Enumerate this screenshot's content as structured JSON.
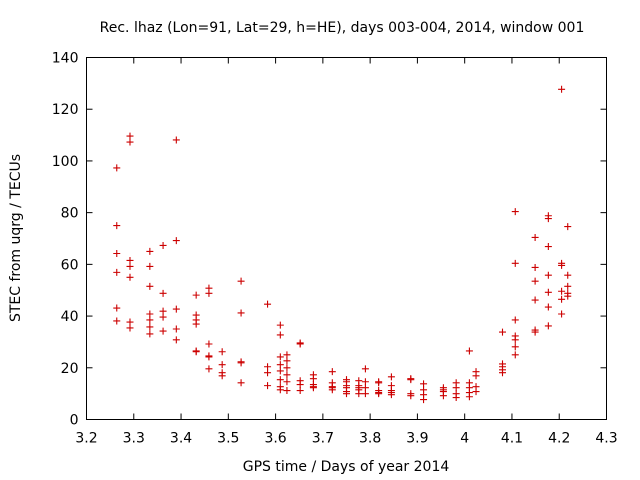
{
  "chart_data": {
    "type": "scatter",
    "title": "Rec. lhaz (Lon=91, Lat=29, h=HE), days 003-004, 2014, window 001",
    "xlabel": "GPS time / Days of year 2014",
    "ylabel": "STEC from uqrg / TECUs",
    "xlim": [
      3.2,
      4.3
    ],
    "ylim": [
      0,
      140
    ],
    "xticks": [
      "3.2",
      "3.3",
      "3.4",
      "3.5",
      "3.6",
      "3.7",
      "3.8",
      "3.9",
      "4",
      "4.1",
      "4.2",
      "4.3"
    ],
    "yticks": [
      "0",
      "20",
      "40",
      "60",
      "80",
      "100",
      "120",
      "140"
    ],
    "marker": "+",
    "color": "#cc0000",
    "points": [
      [
        3.264,
        97.3
      ],
      [
        3.264,
        75.0
      ],
      [
        3.264,
        64.2
      ],
      [
        3.264,
        56.9
      ],
      [
        3.264,
        43.1
      ],
      [
        3.264,
        38.1
      ],
      [
        3.292,
        109.6
      ],
      [
        3.292,
        107.3
      ],
      [
        3.292,
        61.5
      ],
      [
        3.292,
        59.2
      ],
      [
        3.292,
        55.0
      ],
      [
        3.292,
        37.7
      ],
      [
        3.292,
        35.4
      ],
      [
        3.334,
        65.0
      ],
      [
        3.334,
        59.2
      ],
      [
        3.334,
        51.5
      ],
      [
        3.334,
        40.8
      ],
      [
        3.334,
        38.5
      ],
      [
        3.334,
        35.8
      ],
      [
        3.334,
        33.1
      ],
      [
        3.362,
        67.3
      ],
      [
        3.362,
        48.8
      ],
      [
        3.362,
        41.9
      ],
      [
        3.362,
        39.6
      ],
      [
        3.362,
        34.2
      ],
      [
        3.39,
        108.1
      ],
      [
        3.39,
        69.2
      ],
      [
        3.39,
        42.7
      ],
      [
        3.39,
        35.0
      ],
      [
        3.39,
        30.8
      ],
      [
        3.432,
        48.1
      ],
      [
        3.432,
        40.4
      ],
      [
        3.432,
        38.5
      ],
      [
        3.432,
        36.9
      ],
      [
        3.432,
        26.5
      ],
      [
        3.432,
        26.2
      ],
      [
        3.459,
        50.8
      ],
      [
        3.459,
        48.8
      ],
      [
        3.459,
        29.2
      ],
      [
        3.459,
        24.6
      ],
      [
        3.459,
        24.2
      ],
      [
        3.459,
        19.6
      ],
      [
        3.487,
        26.2
      ],
      [
        3.487,
        21.2
      ],
      [
        3.487,
        18.1
      ],
      [
        3.487,
        16.9
      ],
      [
        3.527,
        53.5
      ],
      [
        3.527,
        41.2
      ],
      [
        3.527,
        22.3
      ],
      [
        3.527,
        21.9
      ],
      [
        3.527,
        14.2
      ],
      [
        3.583,
        44.6
      ],
      [
        3.583,
        20.4
      ],
      [
        3.583,
        18.1
      ],
      [
        3.583,
        13.1
      ],
      [
        3.61,
        36.5
      ],
      [
        3.61,
        32.7
      ],
      [
        3.61,
        24.2
      ],
      [
        3.61,
        21.2
      ],
      [
        3.61,
        18.8
      ],
      [
        3.61,
        15.4
      ],
      [
        3.61,
        12.7
      ],
      [
        3.61,
        11.5
      ],
      [
        3.624,
        25.0
      ],
      [
        3.624,
        22.7
      ],
      [
        3.624,
        20.0
      ],
      [
        3.624,
        17.3
      ],
      [
        3.624,
        14.6
      ],
      [
        3.624,
        11.2
      ],
      [
        3.652,
        29.6
      ],
      [
        3.652,
        29.2
      ],
      [
        3.652,
        15.0
      ],
      [
        3.652,
        13.5
      ],
      [
        3.652,
        11.2
      ],
      [
        3.68,
        17.3
      ],
      [
        3.68,
        15.8
      ],
      [
        3.68,
        13.5
      ],
      [
        3.68,
        12.7
      ],
      [
        3.68,
        12.3
      ],
      [
        3.72,
        18.5
      ],
      [
        3.72,
        14.2
      ],
      [
        3.72,
        12.7
      ],
      [
        3.72,
        12.3
      ],
      [
        3.72,
        11.5
      ],
      [
        3.75,
        15.4
      ],
      [
        3.75,
        14.6
      ],
      [
        3.75,
        13.1
      ],
      [
        3.75,
        12.3
      ],
      [
        3.75,
        10.8
      ],
      [
        3.75,
        10.0
      ],
      [
        3.776,
        15.0
      ],
      [
        3.776,
        13.1
      ],
      [
        3.776,
        12.3
      ],
      [
        3.776,
        11.5
      ],
      [
        3.776,
        10.0
      ],
      [
        3.79,
        19.6
      ],
      [
        3.79,
        14.6
      ],
      [
        3.79,
        12.3
      ],
      [
        3.79,
        10.0
      ],
      [
        3.818,
        14.6
      ],
      [
        3.818,
        14.2
      ],
      [
        3.818,
        11.2
      ],
      [
        3.818,
        10.4
      ],
      [
        3.818,
        10.0
      ],
      [
        3.845,
        16.5
      ],
      [
        3.845,
        13.1
      ],
      [
        3.845,
        11.2
      ],
      [
        3.845,
        10.4
      ],
      [
        3.845,
        9.6
      ],
      [
        3.886,
        15.8
      ],
      [
        3.886,
        15.4
      ],
      [
        3.886,
        10.0
      ],
      [
        3.886,
        9.2
      ],
      [
        3.913,
        13.8
      ],
      [
        3.913,
        11.5
      ],
      [
        3.913,
        9.6
      ],
      [
        3.913,
        7.7
      ],
      [
        3.955,
        12.3
      ],
      [
        3.955,
        11.5
      ],
      [
        3.955,
        10.8
      ],
      [
        3.955,
        9.2
      ],
      [
        3.982,
        14.2
      ],
      [
        3.982,
        12.3
      ],
      [
        3.982,
        10.0
      ],
      [
        3.982,
        8.5
      ],
      [
        4.01,
        26.5
      ],
      [
        4.01,
        14.2
      ],
      [
        4.01,
        12.3
      ],
      [
        4.01,
        10.4
      ],
      [
        4.01,
        8.8
      ],
      [
        4.024,
        18.5
      ],
      [
        4.024,
        16.9
      ],
      [
        4.024,
        12.7
      ],
      [
        4.024,
        10.8
      ],
      [
        4.08,
        33.8
      ],
      [
        4.08,
        21.5
      ],
      [
        4.08,
        20.4
      ],
      [
        4.08,
        19.2
      ],
      [
        4.08,
        18.1
      ],
      [
        4.107,
        80.4
      ],
      [
        4.107,
        60.4
      ],
      [
        4.107,
        38.5
      ],
      [
        4.107,
        32.3
      ],
      [
        4.107,
        30.8
      ],
      [
        4.107,
        28.1
      ],
      [
        4.107,
        25.0
      ],
      [
        4.149,
        70.4
      ],
      [
        4.149,
        58.8
      ],
      [
        4.149,
        53.5
      ],
      [
        4.149,
        46.2
      ],
      [
        4.149,
        34.6
      ],
      [
        4.149,
        33.8
      ],
      [
        4.177,
        78.8
      ],
      [
        4.177,
        77.7
      ],
      [
        4.177,
        66.9
      ],
      [
        4.177,
        55.8
      ],
      [
        4.177,
        49.2
      ],
      [
        4.177,
        43.5
      ],
      [
        4.177,
        36.2
      ],
      [
        4.205,
        127.7
      ],
      [
        4.205,
        60.4
      ],
      [
        4.205,
        59.6
      ],
      [
        4.205,
        49.6
      ],
      [
        4.205,
        46.5
      ],
      [
        4.205,
        40.8
      ],
      [
        4.218,
        74.6
      ],
      [
        4.218,
        55.8
      ],
      [
        4.218,
        51.5
      ],
      [
        4.218,
        48.8
      ],
      [
        4.218,
        47.7
      ]
    ]
  }
}
